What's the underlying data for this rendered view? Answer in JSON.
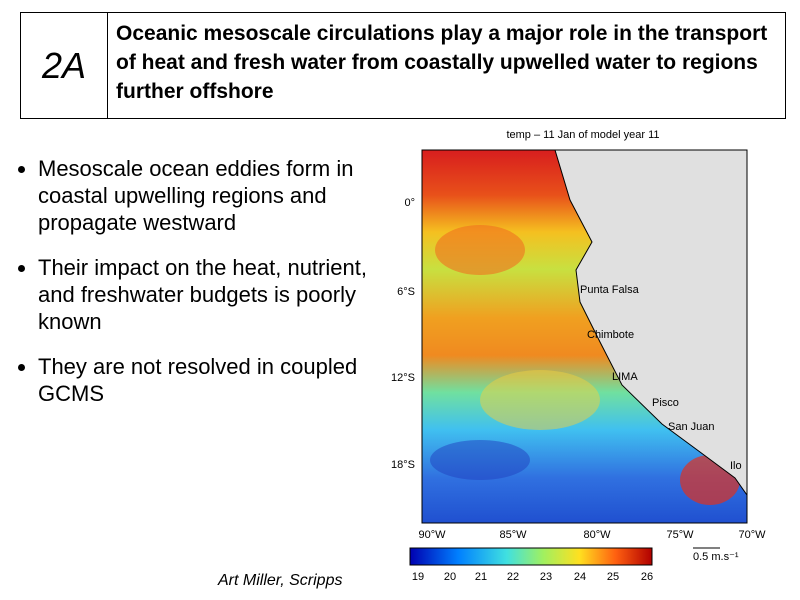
{
  "header": {
    "label": "2A",
    "title": "Oceanic mesoscale circulations play a major role in the transport of heat and fresh water from coastally upwelled water to regions further offshore"
  },
  "bullets": [
    "Mesoscale ocean eddies form in coastal upwelling regions and propagate westward",
    "Their impact on the heat, nutrient, and freshwater budgets is poorly known",
    "They are not resolved in coupled GCMS"
  ],
  "figure": {
    "title": "temp – 11 Jan of model year 11",
    "lat_labels": [
      "0°",
      "6°S",
      "12°S",
      "18°S"
    ],
    "lon_labels": [
      "90°W",
      "85°W",
      "80°W",
      "75°W",
      "70°W"
    ],
    "places": [
      "Punta Falsa",
      "Chimbote",
      "LIMA",
      "Pisco",
      "San Juan",
      "Ilo"
    ],
    "colorbar_labels": [
      "19",
      "20",
      "21",
      "22",
      "23",
      "24",
      "25",
      "26"
    ],
    "scale_label": "0.5 m.s⁻¹"
  },
  "footer": {
    "credit": "Art Miller, Scripps"
  }
}
